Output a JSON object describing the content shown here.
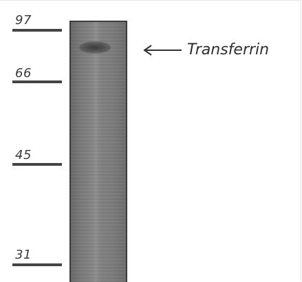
{
  "markers": [
    {
      "label": "97"
    },
    {
      "label": "66"
    },
    {
      "label": "45"
    },
    {
      "label": "31"
    }
  ],
  "band": {
    "label": "Transferrin",
    "arrow_icon": "left-arrow-icon"
  },
  "colors": {
    "lane_border": "#3a3a3a",
    "band": "#2d2d2d",
    "text": "#333333"
  }
}
